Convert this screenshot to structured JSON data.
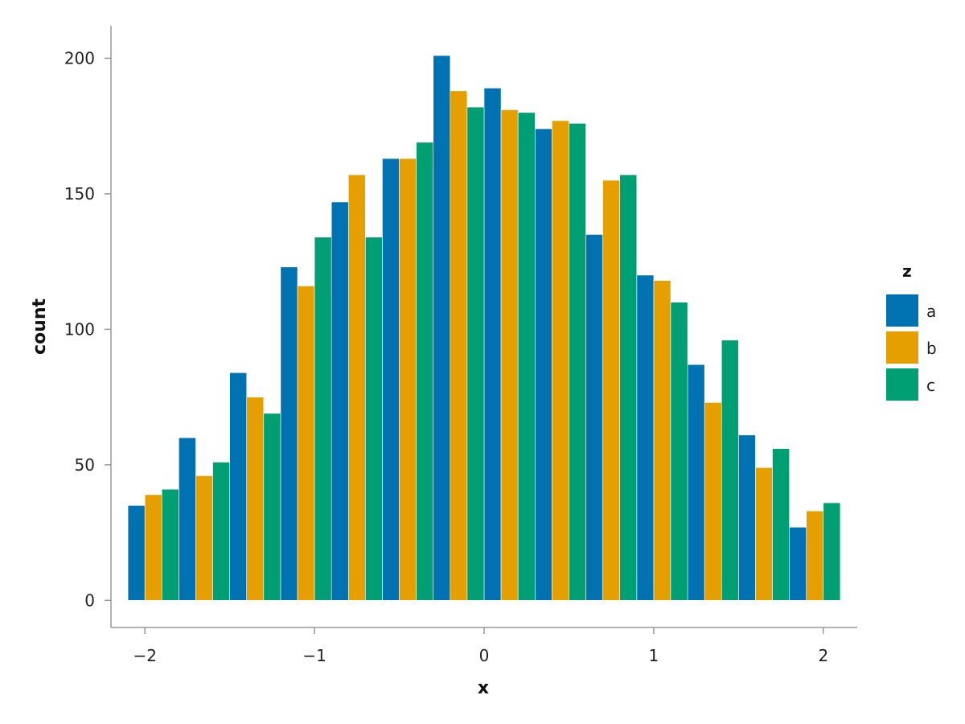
{
  "chart_data": {
    "type": "bar",
    "xlabel": "x",
    "ylabel": "count",
    "xlim": [
      -2.2,
      2.2
    ],
    "ylim": [
      -10,
      212
    ],
    "xticks": [
      -2,
      -1,
      0,
      1,
      2
    ],
    "xtick_labels": [
      "−2",
      "−1",
      "0",
      "1",
      "2"
    ],
    "yticks": [
      0,
      50,
      100,
      150,
      200
    ],
    "yticks_labels": [
      "0",
      "50",
      "100",
      "150",
      "200"
    ],
    "grid": false,
    "legend": {
      "title": "z",
      "placement": "right"
    },
    "x": [
      -1.95,
      -1.65,
      -1.35,
      -1.05,
      -0.75,
      -0.45,
      -0.15,
      0.15,
      0.45,
      0.75,
      1.05,
      1.35,
      1.65,
      1.95
    ],
    "bin_width": 0.3,
    "series": [
      {
        "name": "a",
        "color": "#0072b2",
        "values": [
          35,
          60,
          84,
          123,
          147,
          163,
          201,
          189,
          174,
          135,
          120,
          87,
          61,
          27
        ]
      },
      {
        "name": "b",
        "color": "#e69f00",
        "values": [
          39,
          46,
          75,
          116,
          157,
          163,
          188,
          181,
          177,
          155,
          118,
          73,
          49,
          33
        ]
      },
      {
        "name": "c",
        "color": "#009e73",
        "values": [
          41,
          51,
          69,
          134,
          134,
          169,
          182,
          180,
          176,
          157,
          110,
          96,
          56,
          36
        ]
      }
    ]
  }
}
